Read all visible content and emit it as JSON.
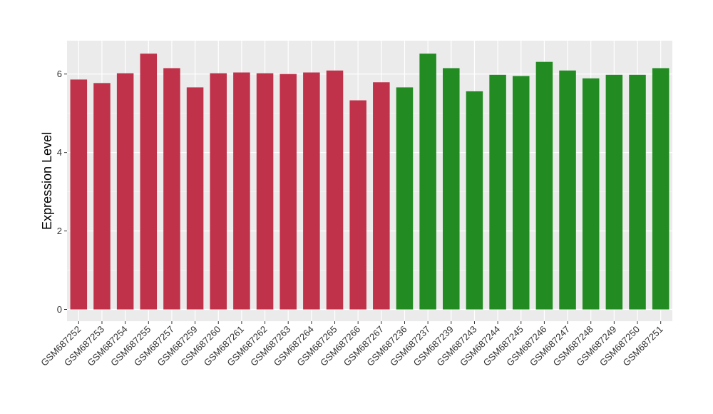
{
  "chart_data": {
    "type": "bar",
    "ylabel": "Expression Level",
    "xlabel": "",
    "ylim": [
      -0.3,
      6.85
    ],
    "yticks": [
      0,
      2,
      4,
      6
    ],
    "grid": true,
    "background": "#ebebeb",
    "categories": [
      "GSM687252",
      "GSM687253",
      "GSM687254",
      "GSM687255",
      "GSM687257",
      "GSM687259",
      "GSM687260",
      "GSM687261",
      "GSM687262",
      "GSM687263",
      "GSM687264",
      "GSM687265",
      "GSM687266",
      "GSM687267",
      "GSM687236",
      "GSM687237",
      "GSM687239",
      "GSM687243",
      "GSM687244",
      "GSM687245",
      "GSM687246",
      "GSM687247",
      "GSM687248",
      "GSM687249",
      "GSM687250",
      "GSM687251"
    ],
    "values": [
      5.86,
      5.77,
      6.02,
      6.52,
      6.15,
      5.66,
      6.02,
      6.04,
      6.02,
      6.0,
      6.04,
      6.09,
      5.33,
      5.79,
      5.66,
      6.52,
      6.15,
      5.56,
      5.98,
      5.95,
      6.31,
      6.09,
      5.89,
      5.98,
      5.98,
      6.15
    ],
    "colors": [
      "#c0314a",
      "#c0314a",
      "#c0314a",
      "#c0314a",
      "#c0314a",
      "#c0314a",
      "#c0314a",
      "#c0314a",
      "#c0314a",
      "#c0314a",
      "#c0314a",
      "#c0314a",
      "#c0314a",
      "#c0314a",
      "#228b22",
      "#228b22",
      "#228b22",
      "#228b22",
      "#228b22",
      "#228b22",
      "#228b22",
      "#228b22",
      "#228b22",
      "#228b22",
      "#228b22",
      "#228b22"
    ]
  }
}
